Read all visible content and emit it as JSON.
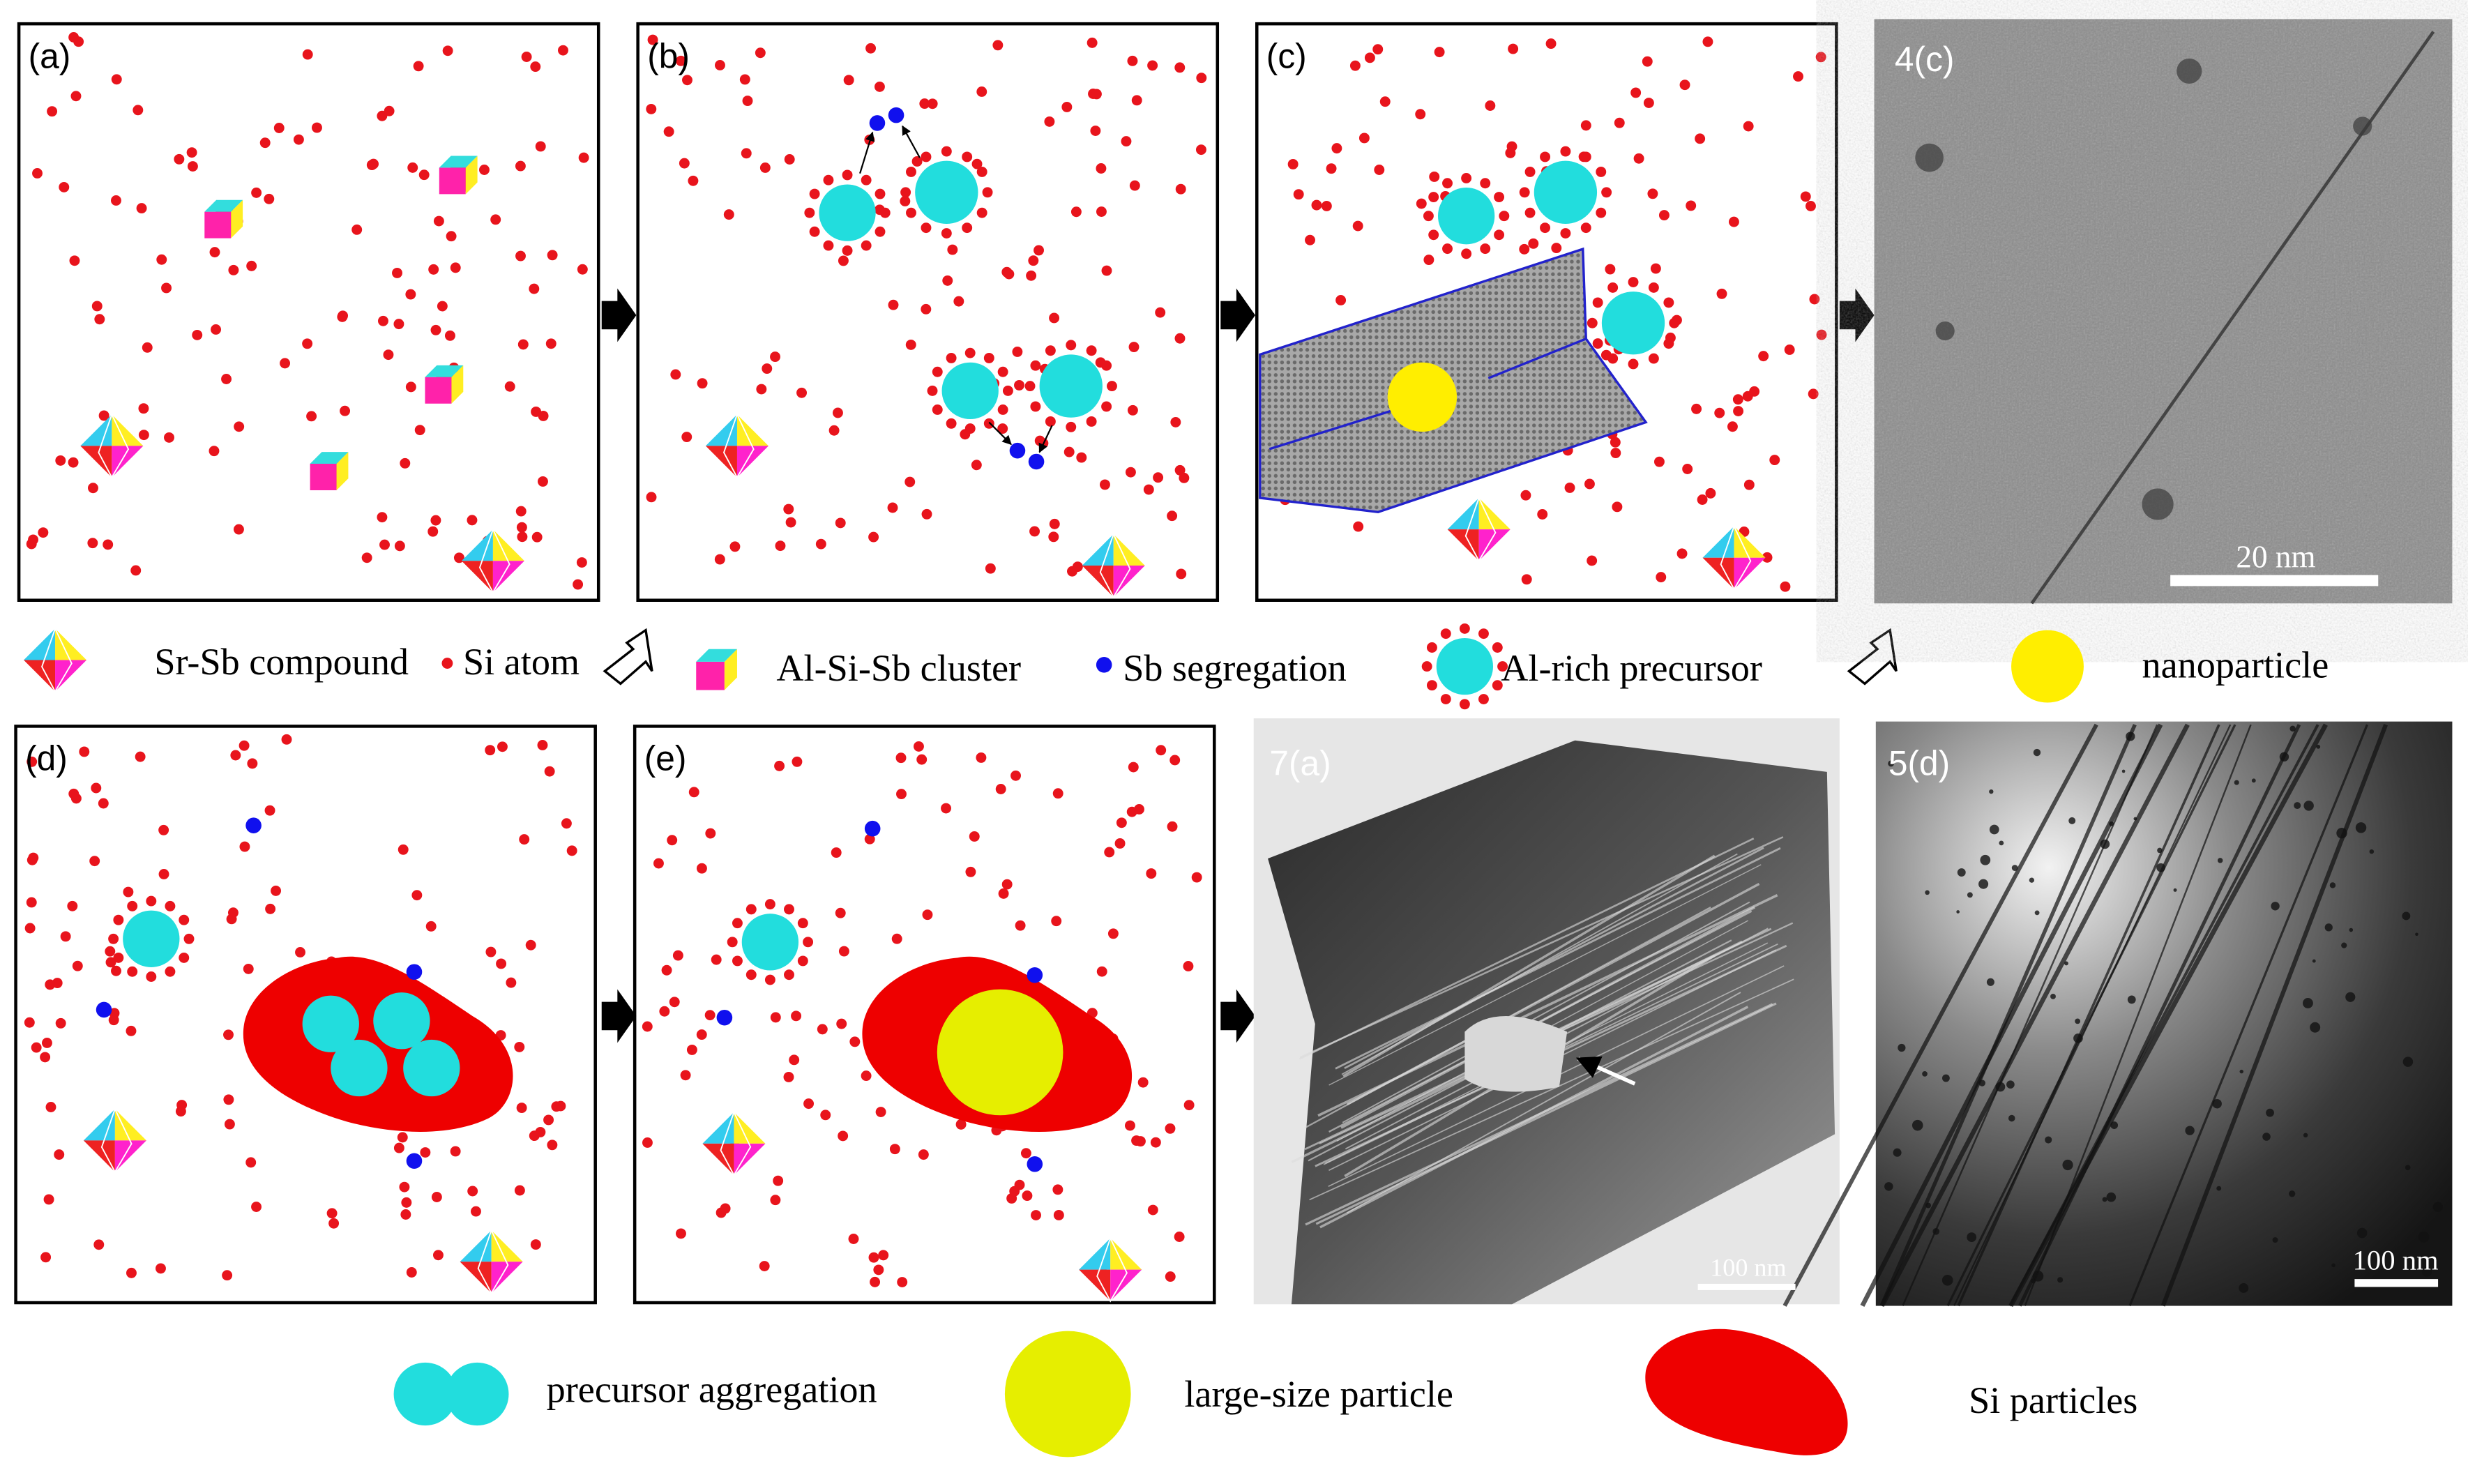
{
  "panels": [
    {
      "label": "(a)"
    },
    {
      "label": "(b)"
    },
    {
      "label": "(c)"
    },
    {
      "label": "(d)"
    },
    {
      "label": "(e)"
    }
  ],
  "micrographs": [
    {
      "label": "4(c)",
      "scale_bar": "20 nm"
    },
    {
      "label": "7(a)",
      "scale_bar": "100 nm"
    },
    {
      "label": "5(d)",
      "scale_bar": "100 nm"
    }
  ],
  "legend_top": [
    "Sr-Sb compound",
    "Si atom",
    "Al-Si-Sb cluster",
    "Sb segregation",
    "Al-rich precursor",
    "nanoparticle"
  ],
  "legend_bottom": [
    "precursor aggregation",
    "large-size particle",
    "Si particles"
  ]
}
